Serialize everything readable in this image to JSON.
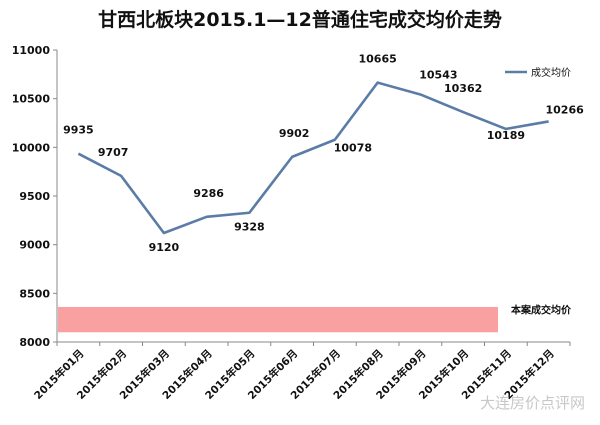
{
  "chart_data": {
    "type": "line",
    "title": "甘西北板块2015.1—12普通住宅成交均价走势",
    "categories": [
      "2015年01月",
      "2015年02月",
      "2015年03月",
      "2015年04月",
      "2015年05月",
      "2015年06月",
      "2015年07月",
      "2015年08月",
      "2015年09月",
      "2015年10月",
      "2015年11月",
      "2015年12月"
    ],
    "series": [
      {
        "name": "成交均价",
        "values": [
          9935,
          9707,
          9120,
          9286,
          9328,
          9902,
          10078,
          10665,
          10543,
          10362,
          10189,
          10266
        ],
        "color": "#5b7ca6"
      }
    ],
    "ylim": [
      8000,
      11000
    ],
    "yticks": [
      8000,
      8500,
      9000,
      9500,
      10000,
      10500,
      11000
    ],
    "grid": false,
    "legend": "top-right",
    "band": {
      "label": "本案成交均价",
      "from": 8100,
      "to": 8360,
      "color": "#f9a0a0"
    },
    "watermark": "大连房价点评网"
  }
}
